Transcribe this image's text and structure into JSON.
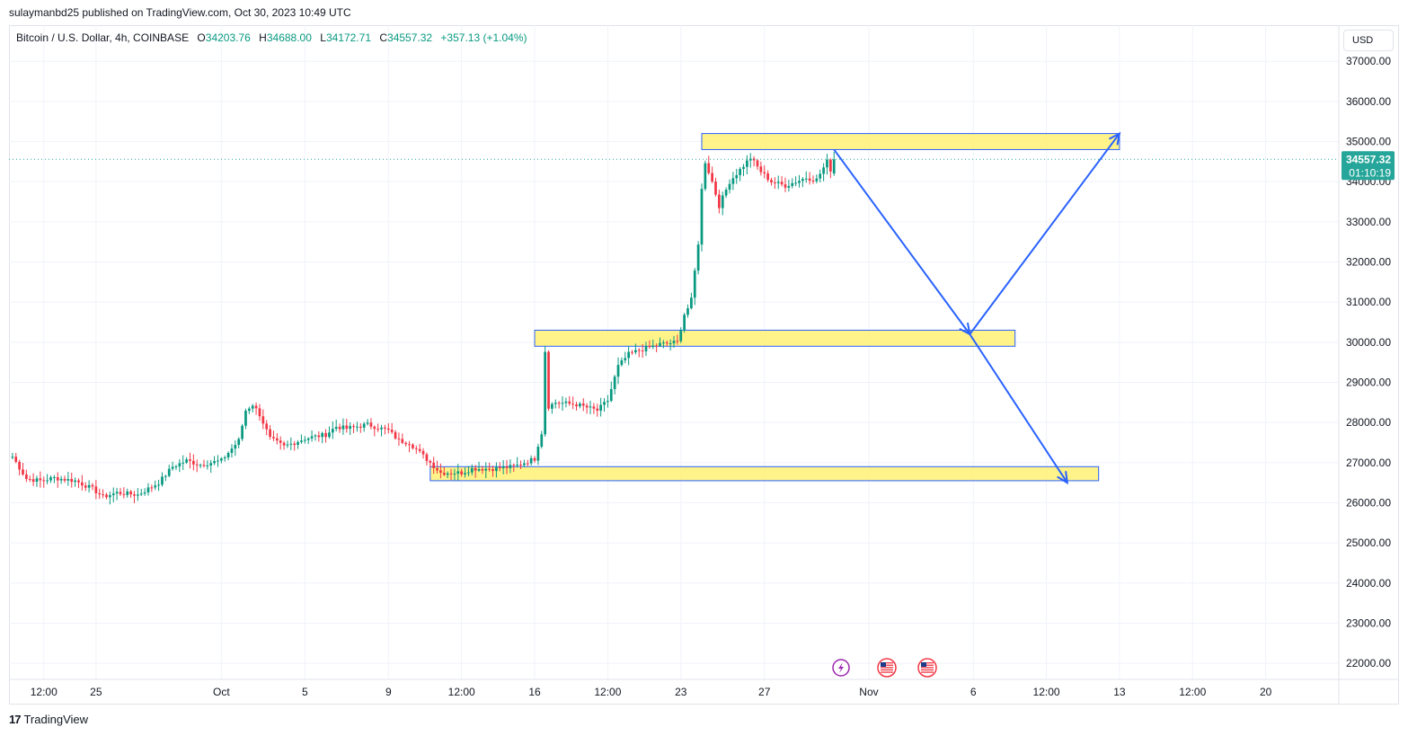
{
  "publisher_line": "sulaymanbd25 published on TradingView.com, Oct 30, 2023 10:49 UTC",
  "legend": {
    "symbol": "Bitcoin / U.S. Dollar, 4h, COINBASE",
    "open_label": "O",
    "open": "34203.76",
    "high_label": "H",
    "high": "34688.00",
    "low_label": "L",
    "low": "34172.71",
    "close_label": "C",
    "close": "34557.32",
    "change": "+357.13 (+1.04%)"
  },
  "currency": "USD",
  "price_tag": {
    "price": "34557.32",
    "countdown": "01:10:19",
    "color": "#26a69a"
  },
  "footer": {
    "brand": "TradingView",
    "mark": "17"
  },
  "colors": {
    "up": "#089981",
    "down": "#f23645",
    "zone_fill": "#fff176",
    "zone_border": "#2962ff",
    "arrow": "#2962ff",
    "grid": "#f0f3fa"
  },
  "event_icons": [
    "lightning-icon",
    "us-flag-icon",
    "us-flag-icon"
  ],
  "chart_data": {
    "type": "candlestick",
    "symbol": "Bitcoin / U.S. Dollar",
    "timeframe": "4h",
    "exchange": "COINBASE",
    "y_axis": {
      "ticks": [
        "22000.00",
        "23000.00",
        "24000.00",
        "25000.00",
        "26000.00",
        "27000.00",
        "28000.00",
        "29000.00",
        "30000.00",
        "31000.00",
        "32000.00",
        "33000.00",
        "34000.00",
        "35000.00",
        "36000.00",
        "37000.00"
      ],
      "range": [
        21600,
        37900
      ]
    },
    "x_axis": {
      "ticks": [
        "12:00",
        "25",
        "Oct",
        "5",
        "9",
        "12:00",
        "16",
        "12:00",
        "23",
        "27",
        "Nov",
        "6",
        "12:00",
        "13",
        "12:00",
        "20"
      ],
      "tick_dates": [
        "2023-09-22 12:00",
        "2023-09-25",
        "2023-10-01",
        "2023-10-05",
        "2023-10-09",
        "2023-10-12 12:00",
        "2023-10-16",
        "2023-10-19 12:00",
        "2023-10-23",
        "2023-10-27",
        "2023-11-01",
        "2023-11-06",
        "2023-11-09 12:00",
        "2023-11-13",
        "2023-11-16 12:00",
        "2023-11-20"
      ]
    },
    "close_path": [
      [
        "2023-09-21 00:00",
        27150
      ],
      [
        "2023-09-21 16:00",
        26600
      ],
      [
        "2023-09-22 08:00",
        26550
      ],
      [
        "2023-09-23 00:00",
        26620
      ],
      [
        "2023-09-24 00:00",
        26550
      ],
      [
        "2023-09-24 20:00",
        26350
      ],
      [
        "2023-09-25 08:00",
        26150
      ],
      [
        "2023-09-26 00:00",
        26250
      ],
      [
        "2023-09-27 00:00",
        26200
      ],
      [
        "2023-09-28 00:00",
        26500
      ],
      [
        "2023-09-28 16:00",
        26900
      ],
      [
        "2023-09-29 08:00",
        27050
      ],
      [
        "2023-09-30 00:00",
        26950
      ],
      [
        "2023-10-01 00:00",
        27050
      ],
      [
        "2023-10-01 20:00",
        27550
      ],
      [
        "2023-10-02 04:00",
        28300
      ],
      [
        "2023-10-02 12:00",
        28450
      ],
      [
        "2023-10-02 20:00",
        28200
      ],
      [
        "2023-10-03 08:00",
        27600
      ],
      [
        "2023-10-04 00:00",
        27400
      ],
      [
        "2023-10-05 00:00",
        27600
      ],
      [
        "2023-10-06 00:00",
        27700
      ],
      [
        "2023-10-06 12:00",
        27900
      ],
      [
        "2023-10-07 00:00",
        27850
      ],
      [
        "2023-10-08 00:00",
        27950
      ],
      [
        "2023-10-09 00:00",
        27800
      ],
      [
        "2023-10-09 12:00",
        27550
      ],
      [
        "2023-10-10 00:00",
        27500
      ],
      [
        "2023-10-11 00:00",
        27000
      ],
      [
        "2023-10-11 12:00",
        26750
      ],
      [
        "2023-10-12 12:00",
        26750
      ],
      [
        "2023-10-13 00:00",
        26850
      ],
      [
        "2023-10-14 00:00",
        26850
      ],
      [
        "2023-10-15 00:00",
        26900
      ],
      [
        "2023-10-16 00:00",
        27100
      ],
      [
        "2023-10-16 08:00",
        27800
      ],
      [
        "2023-10-16 12:00",
        29800
      ],
      [
        "2023-10-16 16:00",
        28400
      ],
      [
        "2023-10-17 00:00",
        28500
      ],
      [
        "2023-10-18 00:00",
        28450
      ],
      [
        "2023-10-19 00:00",
        28300
      ],
      [
        "2023-10-19 12:00",
        28550
      ],
      [
        "2023-10-20 00:00",
        29400
      ],
      [
        "2023-10-20 12:00",
        29700
      ],
      [
        "2023-10-21 00:00",
        29800
      ],
      [
        "2023-10-22 00:00",
        29950
      ],
      [
        "2023-10-22 20:00",
        30000
      ],
      [
        "2023-10-23 04:00",
        30700
      ],
      [
        "2023-10-23 12:00",
        31000
      ],
      [
        "2023-10-23 20:00",
        32500
      ],
      [
        "2023-10-24 00:00",
        33800
      ],
      [
        "2023-10-24 04:00",
        34500
      ],
      [
        "2023-10-24 12:00",
        34000
      ],
      [
        "2023-10-24 20:00",
        33400
      ],
      [
        "2023-10-25 08:00",
        34000
      ],
      [
        "2023-10-25 20:00",
        34300
      ],
      [
        "2023-10-26 08:00",
        34600
      ],
      [
        "2023-10-26 20:00",
        34250
      ],
      [
        "2023-10-27 08:00",
        34000
      ],
      [
        "2023-10-28 00:00",
        33900
      ],
      [
        "2023-10-28 12:00",
        34000
      ],
      [
        "2023-10-29 00:00",
        34100
      ],
      [
        "2023-10-29 12:00",
        34050
      ],
      [
        "2023-10-30 00:00",
        34500
      ],
      [
        "2023-10-30 04:00",
        34300
      ],
      [
        "2023-10-30 08:00",
        34557.32
      ]
    ],
    "zones": [
      {
        "from": "2023-10-24",
        "to": "2023-11-13",
        "low": 34800,
        "high": 35200
      },
      {
        "from": "2023-10-16",
        "to": "2023-11-08",
        "low": 29900,
        "high": 30300
      },
      {
        "from": "2023-10-11",
        "to": "2023-11-12",
        "low": 26550,
        "high": 26900
      }
    ],
    "projection_path": [
      [
        "2023-10-30 08:00",
        34800
      ],
      [
        "2023-11-05 20:00",
        30200
      ],
      [
        "2023-11-13 00:00",
        35200
      ]
    ],
    "projection_branch": [
      [
        "2023-11-05 20:00",
        30200
      ],
      [
        "2023-11-10 12:00",
        26500
      ]
    ],
    "last_price": 34557.32
  }
}
